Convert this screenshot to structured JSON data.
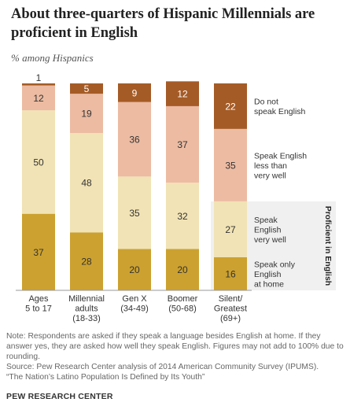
{
  "title": "About three-quarters  of Hispanic Millennials are proficient in English",
  "subtitle": "% among Hispanics",
  "chart_data": {
    "type": "bar",
    "stacked": true,
    "ylim": [
      0,
      100
    ],
    "categories": [
      [
        "Ages",
        "5 to 17"
      ],
      [
        "Millennial",
        "adults",
        "(18-33)"
      ],
      [
        "Gen X",
        "(34-49)"
      ],
      [
        "Boomer",
        "(50-68)"
      ],
      [
        "Silent/",
        "Greatest",
        "(69+)"
      ]
    ],
    "series": [
      {
        "name": "Speak only English at home",
        "legend_lines": [
          "Speak only",
          "English",
          "at home"
        ],
        "color": "#cca12f",
        "values": [
          37,
          28,
          20,
          20,
          16
        ]
      },
      {
        "name": "Speak English very well",
        "legend_lines": [
          "Speak",
          "English",
          "very well"
        ],
        "color": "#f1e3b5",
        "values": [
          50,
          48,
          35,
          32,
          27
        ]
      },
      {
        "name": "Speak English less than very well",
        "legend_lines": [
          "Speak English",
          "less than",
          "very well"
        ],
        "color": "#ecbba2",
        "values": [
          12,
          19,
          36,
          37,
          35
        ]
      },
      {
        "name": "Do not speak English",
        "legend_lines": [
          "Do not",
          "speak English"
        ],
        "color": "#a55b26",
        "values": [
          1,
          5,
          9,
          12,
          22
        ]
      }
    ],
    "bracket_label": "Proficient in English",
    "bracket_color": "#f0f0f0"
  },
  "notes": [
    "Note: Respondents are asked if they speak a language besides English at home. If they answer yes, they are asked how well they speak English. Figures may not add to 100% due to rounding.",
    "Source: Pew Research Center analysis of 2014 American Community Survey (IPUMS).",
    "“The Nation’s Latino Population Is Defined by Its Youth”"
  ],
  "brand": "PEW RESEARCH CENTER"
}
